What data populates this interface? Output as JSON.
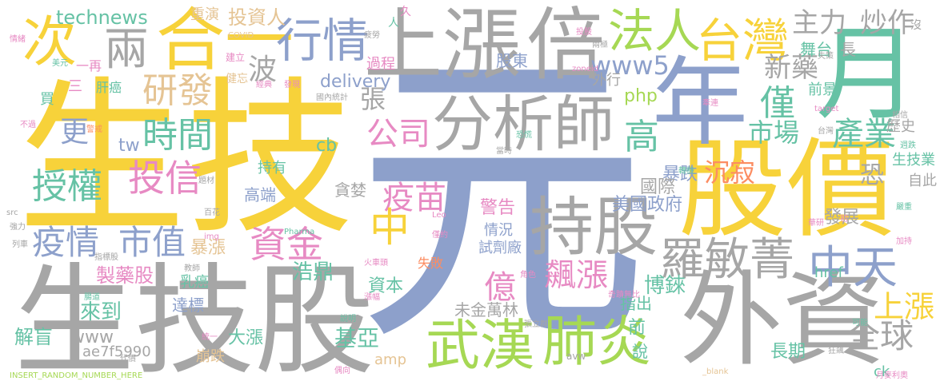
{
  "colors": {
    "yellow": "#f7d23a",
    "gray": "#a6a6a6",
    "blue": "#8da0cb",
    "green": "#66c2a5",
    "lime": "#a6d854",
    "orange": "#fc8d62",
    "pink": "#e78ac3",
    "tan": "#e5c494"
  },
  "words": [
    {
      "text": "元",
      "color": "blue"
    },
    {
      "text": "生技",
      "color": "yellow"
    },
    {
      "text": "生技股",
      "color": "gray"
    },
    {
      "text": "股價",
      "color": "yellow"
    },
    {
      "text": "外資",
      "color": "gray"
    },
    {
      "text": "上漲",
      "color": "gray"
    },
    {
      "text": "倍",
      "color": "gray"
    },
    {
      "text": "年",
      "color": "blue"
    },
    {
      "text": "月",
      "color": "green"
    },
    {
      "text": "合一",
      "color": "yellow"
    },
    {
      "text": "次",
      "color": "yellow"
    },
    {
      "text": "分析師",
      "color": "gray"
    },
    {
      "text": "持股",
      "color": "gray"
    },
    {
      "text": "行情",
      "color": "blue"
    },
    {
      "text": "兩",
      "color": "gray"
    },
    {
      "text": "法人",
      "color": "lime"
    },
    {
      "text": "台灣",
      "color": "yellow"
    },
    {
      "text": "武漢",
      "color": "lime"
    },
    {
      "text": "肺炎",
      "color": "lime"
    },
    {
      "text": "中天",
      "color": "blue"
    },
    {
      "text": "羅敏菁",
      "color": "gray"
    },
    {
      "text": "研發",
      "color": "tan"
    },
    {
      "text": "時間",
      "color": "green"
    },
    {
      "text": "投信",
      "color": "pink"
    },
    {
      "text": "授權",
      "color": "green"
    },
    {
      "text": "疫情",
      "color": "blue"
    },
    {
      "text": "市值",
      "color": "blue"
    },
    {
      "text": "資金",
      "color": "pink"
    },
    {
      "text": "公司",
      "color": "pink"
    },
    {
      "text": "疫苗",
      "color": "pink"
    },
    {
      "text": "中",
      "color": "yellow"
    },
    {
      "text": "僅",
      "color": "green"
    },
    {
      "text": "高",
      "color": "green"
    },
    {
      "text": "產業",
      "color": "green"
    },
    {
      "text": "全球",
      "color": "gray"
    },
    {
      "text": "上漲",
      "color": "yellow"
    },
    {
      "text": "億",
      "color": "pink"
    },
    {
      "text": "飆漲",
      "color": "pink"
    },
    {
      "text": "主力",
      "color": "gray"
    },
    {
      "text": "炒作",
      "color": "gray"
    },
    {
      "text": "新藥",
      "color": "gray"
    },
    {
      "text": "technews",
      "color": "green"
    },
    {
      "text": "投資人",
      "color": "tan"
    },
    {
      "text": "重演",
      "color": "tan"
    },
    {
      "text": "波",
      "color": "gray"
    },
    {
      "text": "張",
      "color": "gray"
    },
    {
      "text": "www5",
      "color": "blue"
    },
    {
      "text": "delivery",
      "color": "blue"
    },
    {
      "text": "php",
      "color": "lime"
    },
    {
      "text": "cb",
      "color": "green"
    },
    {
      "text": "tw",
      "color": "blue"
    },
    {
      "text": "更",
      "color": "blue"
    },
    {
      "text": "市場",
      "color": "green"
    },
    {
      "text": "沉寂",
      "color": "orange"
    },
    {
      "text": "暴跌",
      "color": "blue"
    },
    {
      "text": "國際",
      "color": "gray"
    },
    {
      "text": "美國政府",
      "color": "blue"
    },
    {
      "text": "恐",
      "color": "gray"
    },
    {
      "text": "發展",
      "color": "gray"
    },
    {
      "text": "製藥股",
      "color": "pink"
    },
    {
      "text": "浩鼎",
      "color": "green"
    },
    {
      "text": "暴漲",
      "color": "tan"
    },
    {
      "text": "資本",
      "color": "green"
    },
    {
      "text": "情況",
      "color": "blue"
    },
    {
      "text": "試劑廠",
      "color": "blue"
    },
    {
      "text": "博錸",
      "color": "green"
    },
    {
      "text": "警告",
      "color": "pink"
    },
    {
      "text": "來到",
      "color": "green"
    },
    {
      "text": "解盲",
      "color": "green"
    },
    {
      "text": "www",
      "color": "gray"
    },
    {
      "text": "ae7f5990",
      "color": "gray"
    },
    {
      "text": "基亞",
      "color": "green"
    },
    {
      "text": "amp",
      "color": "tan"
    },
    {
      "text": "未金萬林",
      "color": "gray"
    },
    {
      "text": "指出",
      "color": "green"
    },
    {
      "text": "前",
      "color": "green"
    },
    {
      "text": "說",
      "color": "green"
    },
    {
      "text": "長期",
      "color": "green"
    },
    {
      "text": "崩跌",
      "color": "tan"
    },
    {
      "text": "大漲",
      "color": "green"
    },
    {
      "text": "達標",
      "color": "blue"
    },
    {
      "text": "乳癌",
      "color": "green"
    },
    {
      "text": "href",
      "color": "green"
    },
    {
      "text": "ck",
      "color": "green"
    },
    {
      "text": "舞台",
      "color": "green"
    },
    {
      "text": "長",
      "color": "gray"
    },
    {
      "text": "前景",
      "color": "green"
    },
    {
      "text": "歷史",
      "color": "gray"
    },
    {
      "text": "生技業",
      "color": "green"
    },
    {
      "text": "自此",
      "color": "gray"
    },
    {
      "text": "股東",
      "color": "blue"
    },
    {
      "text": "過程",
      "color": "pink"
    },
    {
      "text": "外行",
      "color": "gray"
    },
    {
      "text": "高端",
      "color": "blue"
    },
    {
      "text": "貪婪",
      "color": "gray"
    },
    {
      "text": "持有",
      "color": "green"
    },
    {
      "text": "失敗",
      "color": "orange"
    },
    {
      "text": "肝癌",
      "color": "green"
    },
    {
      "text": "一再",
      "color": "pink"
    },
    {
      "text": "三",
      "color": "pink"
    },
    {
      "text": "買",
      "color": "green"
    },
    {
      "text": "COVID",
      "color": "tan"
    },
    {
      "text": "INSERT_RANDOM_NUMBER_HERE",
      "color": "lime"
    },
    {
      "text": "_blank",
      "color": "tan"
    },
    {
      "text": "zoneid",
      "color": "pink"
    },
    {
      "text": "target",
      "color": "pink"
    },
    {
      "text": "avw",
      "color": "gray"
    },
    {
      "text": "img",
      "color": "pink"
    },
    {
      "text": "Pharma",
      "color": "green"
    },
    {
      "text": "Leo",
      "color": "pink"
    },
    {
      "text": "src",
      "color": "gray"
    },
    {
      "text": "健忘",
      "color": "tan"
    },
    {
      "text": "美元",
      "color": "green"
    },
    {
      "text": "投股",
      "color": "pink"
    },
    {
      "text": "情緒",
      "color": "pink"
    },
    {
      "text": "週跌",
      "color": "green"
    },
    {
      "text": "經典",
      "color": "pink"
    },
    {
      "text": "發現",
      "color": "pink"
    },
    {
      "text": "國內",
      "color": "gray"
    },
    {
      "text": "統計",
      "color": "gray"
    },
    {
      "text": "人",
      "color": "green"
    },
    {
      "text": "久",
      "color": "pink"
    },
    {
      "text": "兩極",
      "color": "gray"
    },
    {
      "text": "牽連",
      "color": "pink"
    },
    {
      "text": "沒",
      "color": "gray"
    },
    {
      "text": "建立",
      "color": "pink"
    },
    {
      "text": "嚴重",
      "color": "green"
    },
    {
      "text": "恐慌",
      "color": "green"
    },
    {
      "text": "火車頭",
      "color": "pink"
    },
    {
      "text": "漲幅",
      "color": "pink"
    },
    {
      "text": "教師",
      "color": "gray"
    },
    {
      "text": "代價",
      "color": "gray"
    },
    {
      "text": "奇蹟無比",
      "color": "pink"
    },
    {
      "text": "張立群",
      "color": "gray"
    },
    {
      "text": "百花",
      "color": "gray"
    },
    {
      "text": "轉機",
      "color": "green"
    },
    {
      "text": "題材",
      "color": "gray"
    },
    {
      "text": "警戒",
      "color": "orange"
    },
    {
      "text": "不過",
      "color": "pink"
    },
    {
      "text": "說明",
      "color": "green"
    },
    {
      "text": "統一",
      "color": "pink"
    },
    {
      "text": "腸道",
      "color": "green"
    },
    {
      "text": "失策",
      "color": "gray"
    },
    {
      "text": "當時",
      "color": "gray"
    },
    {
      "text": "台灣",
      "color": "gray"
    },
    {
      "text": "初",
      "color": "pink"
    },
    {
      "text": "可能",
      "color": "green"
    },
    {
      "text": "相信",
      "color": "gray"
    },
    {
      "text": "偶向",
      "color": "pink"
    },
    {
      "text": "狂飆",
      "color": "gray"
    },
    {
      "text": "加持",
      "color": "pink"
    },
    {
      "text": "列車",
      "color": "gray"
    },
    {
      "text": "疲勞",
      "color": "gray"
    },
    {
      "text": "強力",
      "color": "gray"
    },
    {
      "text": "指標股",
      "color": "gray"
    },
    {
      "text": "角色",
      "color": "pink"
    },
    {
      "text": "華研",
      "color": "pink"
    },
    {
      "text": "僅約",
      "color": "pink"
    },
    {
      "text": "月麥利奧",
      "color": "pink"
    }
  ]
}
